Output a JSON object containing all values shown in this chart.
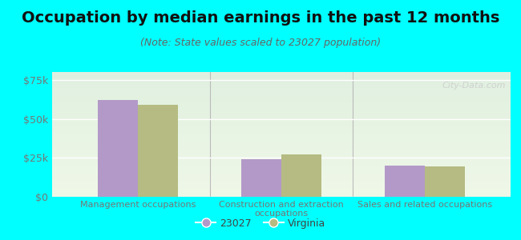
{
  "title": "Occupation by median earnings in the past 12 months",
  "subtitle": "(Note: State values scaled to 23027 population)",
  "categories": [
    "Management occupations",
    "Construction and extraction\noccupations",
    "Sales and related occupations"
  ],
  "values_23027": [
    62000,
    24000,
    20000
  ],
  "values_virginia": [
    59000,
    27000,
    19500
  ],
  "bar_color_23027": "#b399c8",
  "bar_color_virginia": "#b5bb82",
  "ylim": [
    0,
    80000
  ],
  "yticks": [
    0,
    25000,
    50000,
    75000
  ],
  "background_color": "#00FFFF",
  "plot_bg_top": "#f0f8e8",
  "plot_bg_bottom": "#e0f0e0",
  "legend_23027": "23027",
  "legend_virginia": "Virginia",
  "watermark": "City-Data.com",
  "bar_width": 0.28,
  "title_fontsize": 14,
  "subtitle_fontsize": 9,
  "tick_fontsize": 9,
  "xtick_fontsize": 8,
  "title_color": "#111111",
  "subtitle_color": "#666666",
  "tick_color": "#777777",
  "xtick_color": "#777777",
  "separator_color": "#bbbbbb",
  "grid_color": "#dddddd",
  "watermark_color": "#cccccc"
}
